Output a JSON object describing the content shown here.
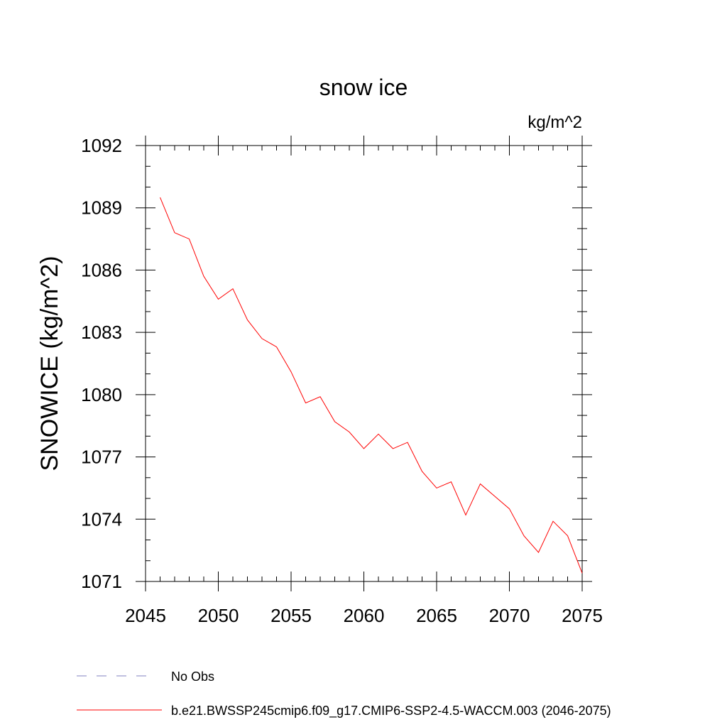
{
  "chart_data": {
    "type": "line",
    "title": "snow ice",
    "units_label": "kg/m^2",
    "xlabel": "",
    "ylabel": "SNOWICE  (kg/m^2)",
    "xlim": [
      2045,
      2075
    ],
    "ylim": [
      1071,
      1092
    ],
    "x_ticks": [
      2045,
      2050,
      2055,
      2060,
      2065,
      2070,
      2075
    ],
    "y_ticks": [
      1071,
      1074,
      1077,
      1080,
      1083,
      1086,
      1089,
      1092
    ],
    "x_minor_step": 1,
    "y_minor_step": 1,
    "grid": false,
    "legend_position": "bottom-left",
    "x": [
      2046,
      2047,
      2048,
      2049,
      2050,
      2051,
      2052,
      2053,
      2054,
      2055,
      2056,
      2057,
      2058,
      2059,
      2060,
      2061,
      2062,
      2063,
      2064,
      2065,
      2066,
      2067,
      2068,
      2069,
      2070,
      2071,
      2072,
      2073,
      2074,
      2075
    ],
    "series": [
      {
        "name": "b.e21.BWSSP245cmip6.f09_g17.CMIP6-SSP2-4.5-WACCM.003 (2046-2075)",
        "color": "#ff0000",
        "style": "solid",
        "values": [
          1089.5,
          1087.8,
          1087.5,
          1085.7,
          1084.6,
          1085.1,
          1083.6,
          1082.7,
          1082.3,
          1081.1,
          1079.6,
          1079.9,
          1078.7,
          1078.2,
          1077.4,
          1078.1,
          1077.4,
          1077.7,
          1076.3,
          1075.5,
          1075.8,
          1074.2,
          1075.7,
          1075.1,
          1074.5,
          1073.2,
          1072.4,
          1073.9,
          1073.2,
          1071.4
        ]
      }
    ],
    "legend": [
      {
        "label": "No Obs",
        "color": "#8080c0",
        "style": "dashed"
      },
      {
        "label": "b.e21.BWSSP245cmip6.f09_g17.CMIP6-SSP2-4.5-WACCM.003 (2046-2075)",
        "color": "#ff0000",
        "style": "solid"
      }
    ]
  }
}
